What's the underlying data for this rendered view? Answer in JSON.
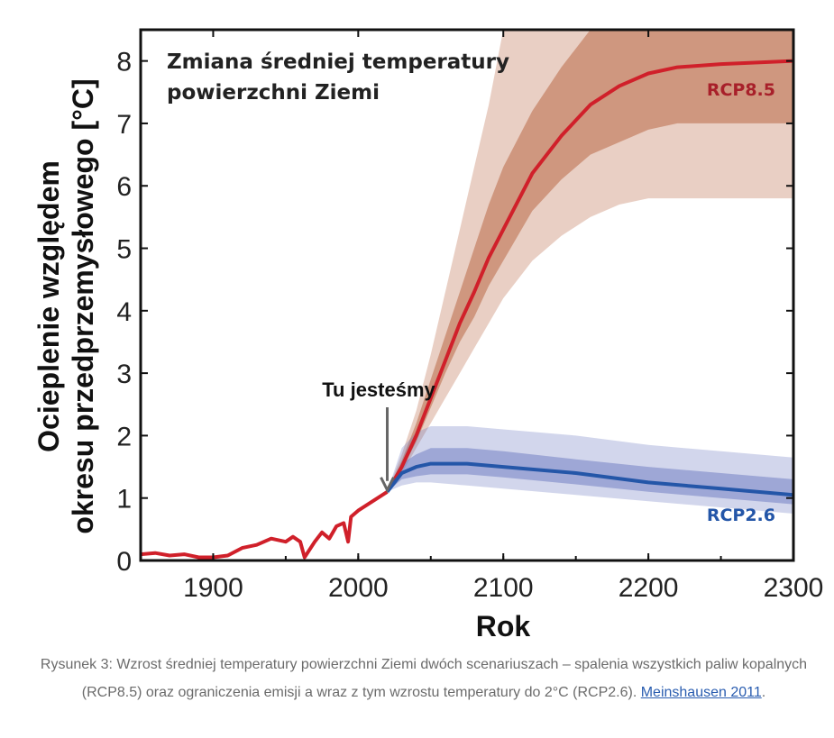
{
  "chart_data": {
    "type": "line",
    "title": "Zmiana średniej temperatury powierzchni Ziemi",
    "title_lines": [
      "Zmiana średniej temperatury",
      "powierzchni Ziemi"
    ],
    "xlabel": "Rok",
    "ylabel_lines": [
      "Ocieplenie względem",
      "okresu przedprzemysłowego [°C]"
    ],
    "xlim": [
      1850,
      2300
    ],
    "ylim": [
      0,
      8.5
    ],
    "xticks": [
      1900,
      2000,
      2100,
      2200,
      2300
    ],
    "yticks": [
      0,
      1,
      2,
      3,
      4,
      5,
      6,
      7,
      8
    ],
    "grid": false,
    "annotation": {
      "text": "Tu jesteśmy",
      "x": 2020,
      "y": 1.1
    },
    "series": [
      {
        "name": "",
        "color": "#d0202a",
        "x": [
          1850,
          1860,
          1870,
          1880,
          1890,
          1900,
          1910,
          1920,
          1930,
          1940,
          1950,
          1955,
          1960,
          1963,
          1970,
          1975,
          1980,
          1985,
          1990,
          1993,
          1995,
          2000,
          2010,
          2020
        ],
        "y": [
          0.1,
          0.12,
          0.08,
          0.1,
          0.05,
          0.05,
          0.08,
          0.2,
          0.25,
          0.35,
          0.3,
          0.38,
          0.3,
          0.05,
          0.3,
          0.45,
          0.35,
          0.55,
          0.6,
          0.3,
          0.7,
          0.8,
          0.95,
          1.1
        ]
      },
      {
        "name": "RCP8.5",
        "color": "#d0202a",
        "label_color": "#a8202a",
        "band_color": "#b5603a",
        "x": [
          2020,
          2030,
          2040,
          2050,
          2060,
          2070,
          2080,
          2090,
          2100,
          2120,
          2140,
          2160,
          2180,
          2200,
          2220,
          2250,
          2300
        ],
        "y": [
          1.1,
          1.5,
          2.0,
          2.6,
          3.2,
          3.8,
          4.3,
          4.85,
          5.3,
          6.2,
          6.8,
          7.3,
          7.6,
          7.8,
          7.9,
          7.95,
          8.0
        ],
        "band_outer_low": [
          1.1,
          1.4,
          1.8,
          2.2,
          2.6,
          3.0,
          3.4,
          3.8,
          4.2,
          4.8,
          5.2,
          5.5,
          5.7,
          5.8,
          5.8,
          5.8,
          5.8
        ],
        "band_outer_high": [
          1.1,
          1.7,
          2.4,
          3.3,
          4.3,
          5.3,
          6.3,
          7.3,
          8.5,
          8.5,
          8.5,
          8.5,
          8.5,
          8.5,
          8.5,
          8.5,
          8.5
        ],
        "band_inner_low": [
          1.1,
          1.45,
          1.9,
          2.45,
          3.0,
          3.5,
          3.9,
          4.4,
          4.8,
          5.6,
          6.1,
          6.5,
          6.7,
          6.9,
          7.0,
          7.0,
          7.0
        ],
        "band_inner_high": [
          1.1,
          1.6,
          2.2,
          2.9,
          3.6,
          4.3,
          5.0,
          5.7,
          6.3,
          7.2,
          7.9,
          8.5,
          8.5,
          8.5,
          8.5,
          8.5,
          8.5
        ]
      },
      {
        "name": "RCP2.6",
        "color": "#2456a8",
        "label_color": "#2456a8",
        "band_color": "#6a78c0",
        "x": [
          2020,
          2030,
          2040,
          2050,
          2075,
          2100,
          2150,
          2200,
          2250,
          2300
        ],
        "y": [
          1.1,
          1.4,
          1.5,
          1.55,
          1.55,
          1.5,
          1.4,
          1.25,
          1.15,
          1.05
        ],
        "band_outer_low": [
          1.1,
          1.2,
          1.25,
          1.25,
          1.2,
          1.15,
          1.05,
          0.95,
          0.85,
          0.75
        ],
        "band_outer_high": [
          1.1,
          1.8,
          2.05,
          2.15,
          2.15,
          2.1,
          2.0,
          1.85,
          1.75,
          1.65
        ],
        "band_inner_low": [
          1.1,
          1.3,
          1.35,
          1.38,
          1.38,
          1.33,
          1.22,
          1.1,
          1.0,
          0.9
        ],
        "band_inner_high": [
          1.1,
          1.55,
          1.7,
          1.8,
          1.8,
          1.75,
          1.62,
          1.5,
          1.4,
          1.3
        ]
      }
    ]
  },
  "caption": {
    "text": "Rysunek 3: Wzrost średniej temperatury powierzchni Ziemi dwóch scenariuszach – spalenia wszystkich paliw kopalnych (RCP8.5) oraz ograniczenia emisji a wraz z tym wzrostu temperatury do 2°C (RCP2.6). ",
    "link_text": "Meinshausen 2011",
    "suffix": "."
  }
}
